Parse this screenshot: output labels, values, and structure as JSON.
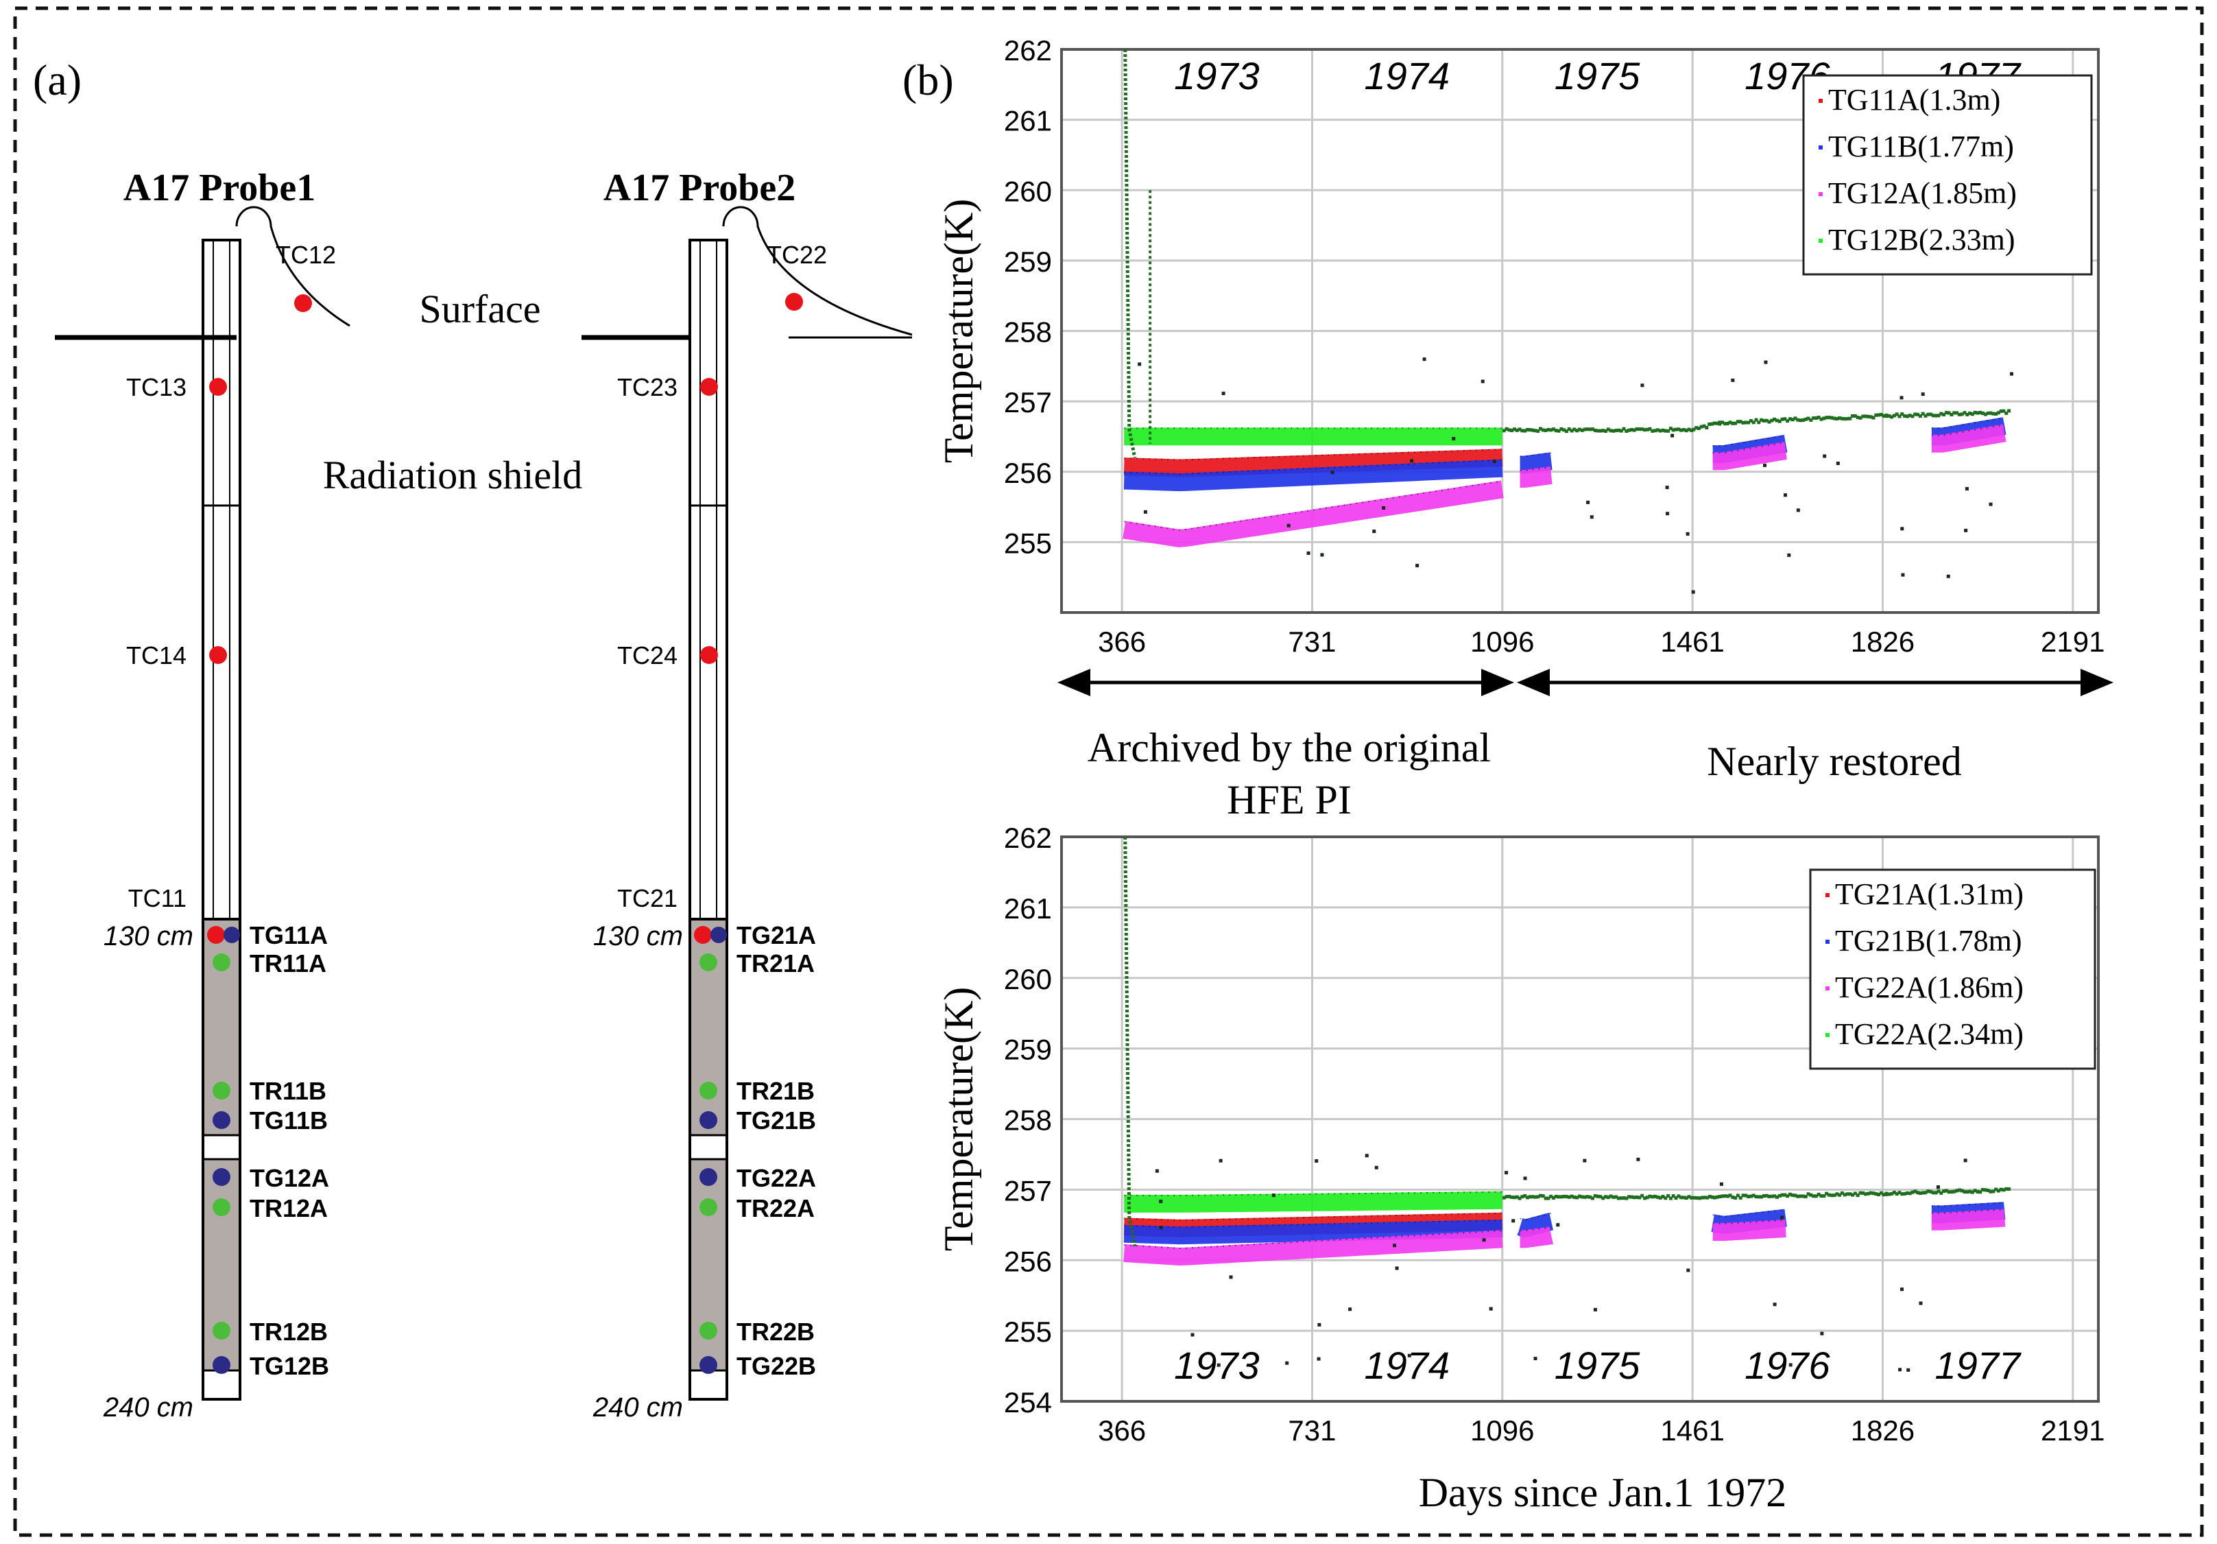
{
  "panel_a": {
    "label": "(a)",
    "surface_label": "Surface",
    "shield_label": "Radiation shield",
    "probes": [
      {
        "title": "A17 Probe1",
        "surface_sensor": "TC12",
        "tc_labels": [
          "TC13",
          "TC14",
          "TC11"
        ],
        "top_depth": "130 cm",
        "bottom_depth": "240 cm",
        "sensors": [
          "TG11A",
          "TR11A",
          "TR11B",
          "TG11B",
          "TG12A",
          "TR12A",
          "TR12B",
          "TG12B"
        ]
      },
      {
        "title": "A17 Probe2",
        "surface_sensor": "TC22",
        "tc_labels": [
          "TC23",
          "TC24",
          "TC21"
        ],
        "top_depth": "130 cm",
        "bottom_depth": "240 cm",
        "sensors": [
          "TG21A",
          "TR21A",
          "TR21B",
          "TG21B",
          "TG22A",
          "TR22A",
          "TR22B",
          "TG22B"
        ]
      }
    ]
  },
  "panel_b": {
    "label": "(b)",
    "archived_label_line1": "Archived by the original",
    "archived_label_line2": "HFE PI",
    "restored_label": "Nearly restored",
    "xlabel": "Days since Jan.1 1972"
  },
  "colors": {
    "red": "#e8141b",
    "blue": "#1f35e6",
    "magenta": "#f03cf0",
    "green": "#22ee22",
    "darkgreen": "#1f6e1f",
    "grid": "#c8c8c8",
    "core": "#b3aba8",
    "probe_blue": "#2b2a86",
    "probe_green": "#4bbd3a"
  },
  "chart_data": [
    {
      "type": "scatter",
      "title": "",
      "xlabel": "",
      "ylabel": "Temperature(K)",
      "xlim": [
        250,
        2240
      ],
      "ylim": [
        254,
        262
      ],
      "yticks": [
        255,
        256,
        257,
        258,
        259,
        260,
        261,
        262
      ],
      "xticks": [
        366,
        731,
        1096,
        1461,
        1826,
        2191
      ],
      "year_labels": [
        "1973",
        "1974",
        "1975",
        "1976",
        "1977"
      ],
      "year_label_position": "top",
      "legend_position": "top-right",
      "series": [
        {
          "name": "TG11A(1.3m)",
          "color": "#e8141b",
          "segments": [
            [
              370,
              1096,
              256.1,
              256.05,
              256.2
            ]
          ]
        },
        {
          "name": "TG11B(1.77m)",
          "color": "#1f35e6",
          "segments": [
            [
              370,
              1096,
              255.9,
              255.85,
              256.05
            ],
            [
              1130,
              1190,
              256.1,
              256.1,
              256.15
            ],
            [
              1500,
              1640,
              256.25,
              256.25,
              256.4
            ],
            [
              1920,
              2060,
              256.5,
              256.5,
              256.65
            ]
          ]
        },
        {
          "name": "TG12A(1.85m)",
          "color": "#f03cf0",
          "segments": [
            [
              370,
              1096,
              255.3,
              255.05,
              255.75
            ],
            [
              1130,
              1190,
              255.9,
              255.9,
              255.95
            ],
            [
              1500,
              1640,
              256.15,
              256.15,
              256.3
            ],
            [
              1920,
              2060,
              256.4,
              256.4,
              256.55
            ]
          ]
        },
        {
          "name": "TG12B(2.33m)",
          "color": "#22ee22",
          "segments": [
            [
              370,
              1096,
              256.5,
              256.5,
              256.5
            ]
          ]
        }
      ]
    },
    {
      "type": "scatter",
      "title": "",
      "xlabel": "Days since Jan.1 1972",
      "ylabel": "Temperature(K)",
      "xlim": [
        250,
        2240
      ],
      "ylim": [
        254,
        262
      ],
      "yticks": [
        254,
        255,
        256,
        257,
        258,
        259,
        260,
        261,
        262
      ],
      "xticks": [
        366,
        731,
        1096,
        1461,
        1826,
        2191
      ],
      "year_labels": [
        "1973",
        "1974",
        "1975",
        "1976",
        "1977"
      ],
      "year_label_position": "bottom",
      "legend_position": "top-right",
      "series": [
        {
          "name": "TG21A(1.31m)",
          "color": "#e8141b",
          "segments": [
            [
              370,
              1096,
              256.5,
              256.45,
              256.55
            ]
          ]
        },
        {
          "name": "TG21B(1.78m)",
          "color": "#1f35e6",
          "segments": [
            [
              370,
              1096,
              256.4,
              256.35,
              256.45
            ],
            [
              1130,
              1190,
              256.5,
              256.45,
              256.55
            ],
            [
              1500,
              1640,
              256.55,
              256.5,
              256.6
            ],
            [
              1920,
              2060,
              256.65,
              256.65,
              256.7
            ]
          ]
        },
        {
          "name": "TG22A(1.86m)",
          "color": "#f03cf0",
          "segments": [
            [
              370,
              1096,
              256.15,
              256.05,
              256.3
            ],
            [
              1130,
              1190,
              256.3,
              256.3,
              256.35
            ],
            [
              1500,
              1640,
              256.4,
              256.4,
              256.45
            ],
            [
              1920,
              2060,
              256.55,
              256.55,
              256.6
            ]
          ]
        },
        {
          "name": "TG22A(2.34m)",
          "color": "#22ee22",
          "segments": [
            [
              370,
              1096,
              256.8,
              256.8,
              256.85
            ]
          ]
        }
      ]
    }
  ]
}
